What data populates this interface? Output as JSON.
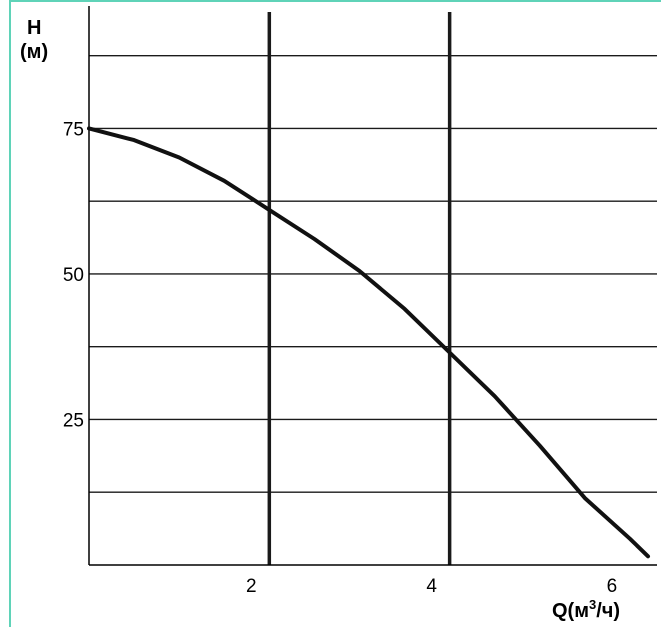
{
  "colors": {
    "frame": "#5fd3b8",
    "grid": "#1a1a1a",
    "curve": "#111111",
    "background": "#ffffff"
  },
  "chart_data": {
    "type": "line",
    "title": "",
    "ylabel_line1": "H",
    "ylabel_line2": "(м)",
    "xlabel_prefix": "Q(м",
    "xlabel_sup": "3",
    "xlabel_suffix": "/ч)",
    "xlim": [
      0,
      6.3
    ],
    "ylim": [
      0,
      95
    ],
    "x_ticks": [
      2,
      4,
      6
    ],
    "x_tick_labels": [
      "2",
      "4",
      "6"
    ],
    "y_ticks": [
      25,
      50,
      75
    ],
    "y_tick_labels": [
      "25",
      "50",
      "75"
    ],
    "grid": true,
    "legend": "none",
    "series": [
      {
        "x": [
          0,
          0.5,
          1.0,
          1.5,
          2.0,
          2.5,
          3.0,
          3.5,
          4.0,
          4.5,
          5.0,
          5.5,
          6.0,
          6.2
        ],
        "y": [
          75,
          73,
          70,
          66,
          61,
          56,
          50.5,
          44,
          36.5,
          29,
          20.5,
          11.5,
          4.5,
          1.5
        ]
      }
    ]
  }
}
